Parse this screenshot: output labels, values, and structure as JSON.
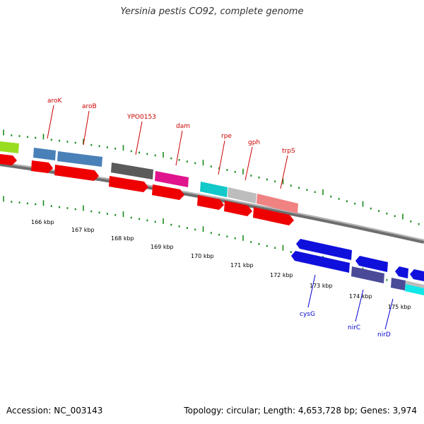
{
  "title": "Yersinia pestis CO92, complete genome",
  "footer": {
    "accession": "Accession: NC_003143",
    "summary": "Topology: circular; Length: 4,653,728 bp; Genes: 3,974"
  },
  "colors": {
    "forward_label": "#cc0000",
    "reverse_label": "#0000cc",
    "backbone": "#8a8a8a",
    "tick": "#1a8a1a"
  },
  "axis": {
    "tick_labels": [
      "166 kbp",
      "167 kbp",
      "168 kbp",
      "169 kbp",
      "170 kbp",
      "171 kbp",
      "172 kbp",
      "173 kbp",
      "174 kbp",
      "175 kbp"
    ]
  },
  "gene_labels": [
    {
      "text": "aroK",
      "strand": "forward"
    },
    {
      "text": "aroB",
      "strand": "forward"
    },
    {
      "text": "YPO0153",
      "strand": "forward"
    },
    {
      "text": "dam",
      "strand": "forward"
    },
    {
      "text": "rpe",
      "strand": "forward"
    },
    {
      "text": "gph",
      "strand": "forward"
    },
    {
      "text": "trpS",
      "strand": "forward"
    },
    {
      "text": "cysG",
      "strand": "reverse"
    },
    {
      "text": "nirC",
      "strand": "reverse"
    },
    {
      "text": "nirD",
      "strand": "reverse"
    }
  ]
}
